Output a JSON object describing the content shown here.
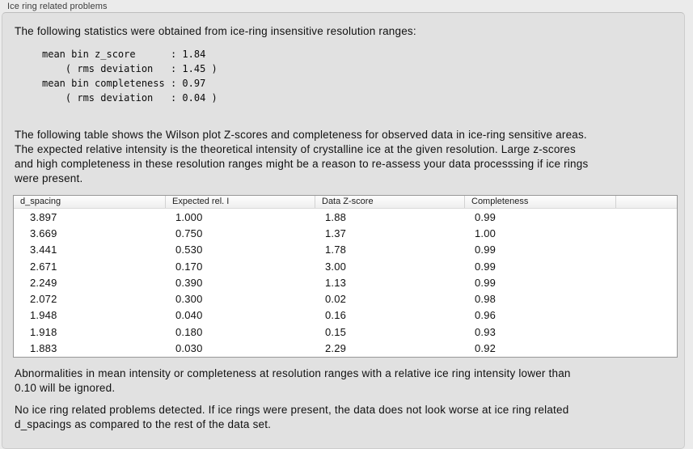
{
  "window": {
    "title": "Ice ring related problems"
  },
  "colors": {
    "page_bg": "#ebebeb",
    "panel_bg": "#e1e1e1",
    "panel_border": "#cccccc",
    "table_border": "#979797",
    "text": "#111111"
  },
  "intro": "The following statistics were obtained from ice-ring insensitive resolution ranges:",
  "stats": {
    "lines": [
      "mean bin z_score      : 1.84",
      "    ( rms deviation   : 1.45 )",
      "mean bin completeness : 0.97",
      "    ( rms deviation   : 0.04 )"
    ]
  },
  "table_description": "The following table shows the Wilson plot Z-scores and completeness for observed data in ice-ring sensitive areas.\nThe expected relative intensity is the theoretical intensity of crystalline ice at the given resolution. Large z-scores\nand high completeness in these resolution ranges might be a reason to re-assess your data processsing if ice rings\nwere present.",
  "table": {
    "headers": [
      "d_spacing",
      "Expected rel. I",
      "Data Z-score",
      "Completeness",
      ""
    ],
    "rows": [
      [
        "3.897",
        "1.000",
        "1.88",
        "0.99"
      ],
      [
        "3.669",
        "0.750",
        "1.37",
        "1.00"
      ],
      [
        "3.441",
        "0.530",
        "1.78",
        "0.99"
      ],
      [
        "2.671",
        "0.170",
        "3.00",
        "0.99"
      ],
      [
        "2.249",
        "0.390",
        "1.13",
        "0.99"
      ],
      [
        "2.072",
        "0.300",
        "0.02",
        "0.98"
      ],
      [
        "1.948",
        "0.040",
        "0.16",
        "0.96"
      ],
      [
        "1.918",
        "0.180",
        "0.15",
        "0.93"
      ],
      [
        "1.883",
        "0.030",
        "2.29",
        "0.92"
      ]
    ]
  },
  "notes": {
    "ignore_note": "Abnormalities in mean intensity or completeness at resolution ranges with a relative ice ring intensity lower than\n0.10 will be ignored.",
    "conclusion": "No ice ring related problems detected. If ice rings were present, the data does not look worse at ice ring related\nd_spacings as compared to the rest of the data set."
  }
}
